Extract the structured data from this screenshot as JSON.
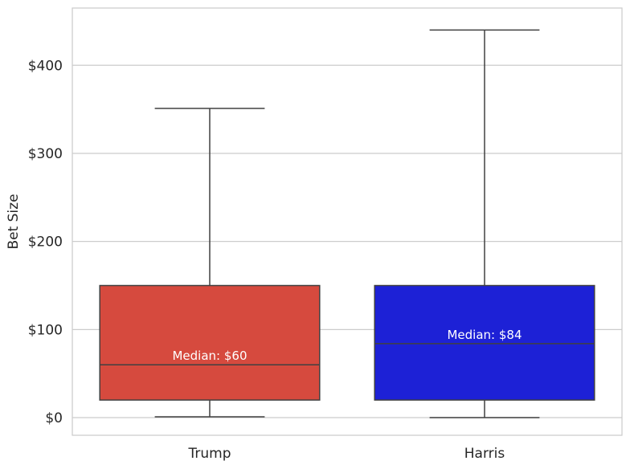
{
  "chart_data": {
    "type": "box",
    "title": "",
    "xlabel": "",
    "ylabel": "Bet Size",
    "ylim": [
      -20,
      465
    ],
    "yticks": [
      0,
      100,
      200,
      300,
      400
    ],
    "ytick_labels": [
      "$0",
      "$100",
      "$200",
      "$300",
      "$400"
    ],
    "grid": "horizontal",
    "categories": [
      "Trump",
      "Harris"
    ],
    "boxes": [
      {
        "category": "Trump",
        "whisker_low": 1,
        "q1": 20,
        "median": 60,
        "q3": 150,
        "whisker_high": 351,
        "color": "#d64a3e",
        "median_label": "Median: $60"
      },
      {
        "category": "Harris",
        "whisker_low": 0,
        "q1": 20,
        "median": 84,
        "q3": 150,
        "whisker_high": 440,
        "color": "#1d21d6",
        "median_label": "Median: $84"
      }
    ]
  },
  "colors": {
    "grid": "#cccccc",
    "frame": "#cccccc",
    "lines": "#404040",
    "text": "#262626",
    "background": "#ffffff"
  }
}
